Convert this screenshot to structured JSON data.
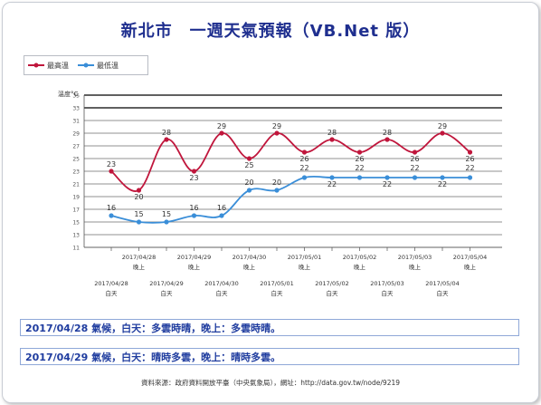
{
  "title": "新北市　一週天氣預報（VB.Net 版）",
  "legend": [
    {
      "label": "最高溫",
      "color": "#c0163c",
      "icon": "circle-marker-icon"
    },
    {
      "label": "最低溫",
      "color": "#3a8ed8",
      "icon": "circle-marker-icon"
    }
  ],
  "chart_data": {
    "type": "line",
    "ylabel": "溫度°C",
    "ylim": [
      11,
      35
    ],
    "y_ticks": [
      11,
      13,
      15,
      17,
      19,
      21,
      23,
      25,
      27,
      29,
      31,
      33,
      35
    ],
    "grid": true,
    "x_row1": [
      "",
      "2017/04/28\n晚上",
      "",
      "2017/04/29\n晚上",
      "",
      "2017/04/30\n晚上",
      "",
      "2017/05/01\n晚上",
      "",
      "2017/05/02\n晚上",
      "",
      "2017/05/03\n晚上",
      "",
      "2017/05/04\n晚上"
    ],
    "x_row2": [
      "2017/04/28\n白天",
      "",
      "2017/04/29\n白天",
      "",
      "2017/04/30\n白天",
      "",
      "2017/05/01\n白天",
      "",
      "2017/05/02\n白天",
      "",
      "2017/05/03\n白天",
      "",
      "2017/05/04\n白天",
      ""
    ],
    "series": [
      {
        "name": "最高溫",
        "color": "#c0163c",
        "values": [
          23,
          20,
          28,
          23,
          29,
          25,
          29,
          26,
          28,
          26,
          28,
          26,
          29,
          26
        ]
      },
      {
        "name": "最低溫",
        "color": "#3a8ed8",
        "values": [
          16,
          15,
          15,
          16,
          16,
          20,
          20,
          22,
          22,
          22,
          22,
          22,
          22,
          22
        ]
      }
    ]
  },
  "forecasts": [
    "2017/04/28 氣候，白天：多雲時晴，晚上：多雲時晴。",
    "2017/04/29 氣候，白天：晴時多雲，晚上：晴時多雲。"
  ],
  "source": "資料來源：政府資料開放平臺（中央氣象局），網址：http://data.gov.tw/node/9219"
}
